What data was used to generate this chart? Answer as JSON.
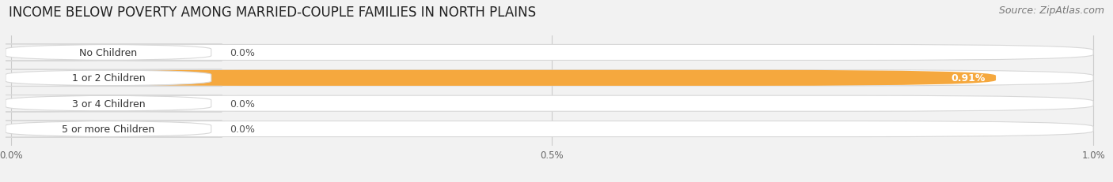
{
  "title": "INCOME BELOW POVERTY AMONG MARRIED-COUPLE FAMILIES IN NORTH PLAINS",
  "source": "Source: ZipAtlas.com",
  "categories": [
    "No Children",
    "1 or 2 Children",
    "3 or 4 Children",
    "5 or more Children"
  ],
  "values": [
    0.0,
    0.91,
    0.0,
    0.0
  ],
  "bar_colors": [
    "#f4a0b5",
    "#f5a83e",
    "#f4a0b5",
    "#a0b8d8"
  ],
  "xlim_max": 1.0,
  "xtick_vals": [
    0.0,
    0.5,
    1.0
  ],
  "xtick_labels": [
    "0.0%",
    "0.5%",
    "1.0%"
  ],
  "background_color": "#f2f2f2",
  "bar_bg_color": "#e4e4e4",
  "bar_border_color": "#d8d8d8",
  "title_fontsize": 12,
  "source_fontsize": 9,
  "cat_fontsize": 9,
  "val_fontsize": 9
}
